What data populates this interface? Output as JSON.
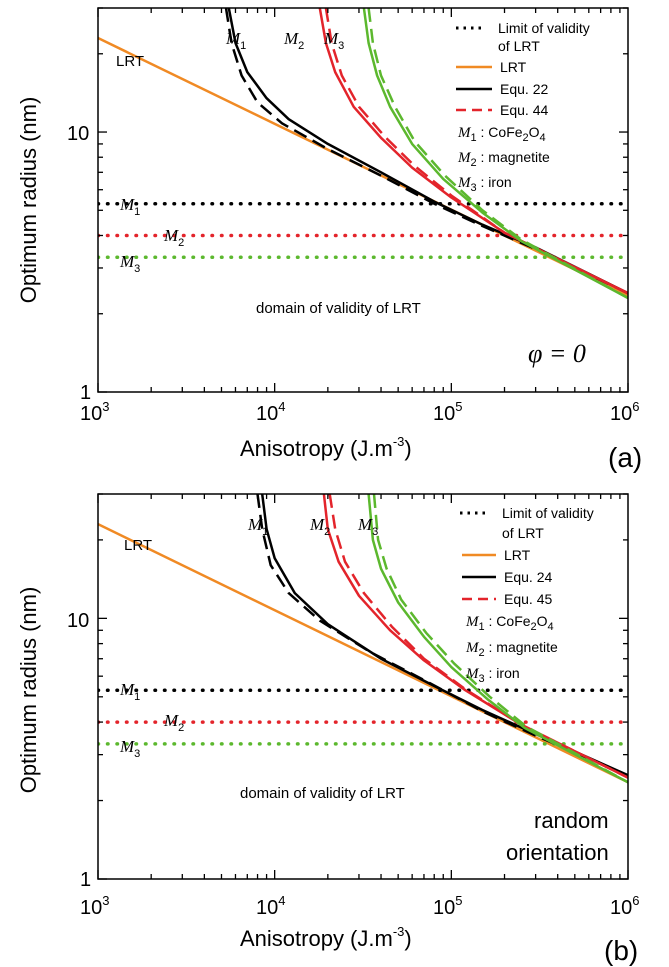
{
  "chart_data": [
    {
      "panel_id": "(a)",
      "type": "line",
      "xlabel": "Anisotropy (J.m",
      "xlabel_exp": "-3",
      "xlabel_end": ")",
      "ylabel": "Optimum radius (nm)",
      "xscale": "log",
      "yscale": "log",
      "xlim": [
        1000,
        1000000
      ],
      "ylim": [
        1,
        30
      ],
      "x_ticks": [
        {
          "base": "10",
          "exp": "3"
        },
        {
          "base": "10",
          "exp": "4"
        },
        {
          "base": "10",
          "exp": "5"
        },
        {
          "base": "10",
          "exp": "6"
        }
      ],
      "y_ticks": [
        "1",
        "10"
      ],
      "condition": "φ = 0",
      "annotation": "domain of validity of LRT",
      "lrt_label": "LRT",
      "legend": [
        {
          "label": "Limit of validity",
          "label2": "of LRT",
          "style": "dotted",
          "color": "#000000"
        },
        {
          "label": "LRT",
          "style": "solid",
          "color": "#f08a24"
        },
        {
          "label": "Equ. 22",
          "style": "solid",
          "color": "#000000"
        },
        {
          "label": "Equ. 44",
          "style": "dashed",
          "color": "#e3242b"
        }
      ],
      "materials": [
        {
          "sym": "M",
          "sub": "1",
          "name": " : CoFe",
          "name_sub1": "2",
          "name_mid": "O",
          "name_sub2": "4",
          "color": "#000000"
        },
        {
          "sym": "M",
          "sub": "2",
          "name": " : magnetite",
          "color": "#e3242b"
        },
        {
          "sym": "M",
          "sub": "3",
          "name": " : iron",
          "color": "#5cb82e"
        }
      ],
      "series": [
        {
          "name": "LRT",
          "color": "#f08a24",
          "style": "solid",
          "x": [
            1000,
            1000000
          ],
          "y": [
            23,
            2.35
          ]
        },
        {
          "name": "Limit of validity M1",
          "color": "#000000",
          "style": "dotted",
          "x": [
            1000,
            1000000
          ],
          "y": [
            5.3,
            5.3
          ]
        },
        {
          "name": "Limit of validity M2",
          "color": "#e3242b",
          "style": "dotted",
          "x": [
            1000,
            1000000
          ],
          "y": [
            4.0,
            4.0
          ]
        },
        {
          "name": "Limit of validity M3",
          "color": "#5cb82e",
          "style": "dotted",
          "x": [
            1000,
            1000000
          ],
          "y": [
            3.3,
            3.3
          ]
        },
        {
          "name": "Equ. 22 M1",
          "color": "#000000",
          "style": "solid",
          "x": [
            5500,
            6000,
            7000,
            9000,
            12000,
            20000,
            40000,
            80000,
            150000,
            300000,
            1000000
          ],
          "y": [
            30,
            22,
            17,
            13.5,
            11.2,
            9.0,
            7.0,
            5.4,
            4.4,
            3.6,
            2.4
          ]
        },
        {
          "name": "Equ. 44 M1",
          "color": "#000000",
          "style": "dashed",
          "x": [
            5300,
            5700,
            6500,
            8000,
            11000,
            20000,
            40000,
            80000,
            150000,
            300000,
            1000000
          ],
          "y": [
            30,
            22,
            16.5,
            13,
            10.8,
            8.6,
            6.8,
            5.3,
            4.35,
            3.55,
            2.4
          ]
        },
        {
          "name": "Equ. 22 M2",
          "color": "#e3242b",
          "style": "solid",
          "x": [
            18000,
            19500,
            22000,
            28000,
            40000,
            60000,
            100000,
            200000,
            1000000
          ],
          "y": [
            30,
            22,
            17,
            12.5,
            9.5,
            7.3,
            5.6,
            4.1,
            2.4
          ]
        },
        {
          "name": "Equ. 44 M2",
          "color": "#e3242b",
          "style": "dashed",
          "x": [
            19500,
            21000,
            24000,
            30000,
            42000,
            62000,
            100000,
            200000,
            1000000
          ],
          "y": [
            30,
            22,
            16.5,
            12.5,
            9.6,
            7.4,
            5.7,
            4.1,
            2.4
          ]
        },
        {
          "name": "Equ. 22 M3",
          "color": "#5cb82e",
          "style": "solid",
          "x": [
            32000,
            34000,
            38000,
            45000,
            60000,
            90000,
            150000,
            250000,
            1000000
          ],
          "y": [
            30,
            22,
            16.5,
            12.5,
            9.0,
            6.6,
            4.9,
            3.8,
            2.3
          ]
        },
        {
          "name": "Equ. 44 M3",
          "color": "#5cb82e",
          "style": "dashed",
          "x": [
            34000,
            36000,
            40000,
            48000,
            62000,
            92000,
            150000,
            250000,
            1000000
          ],
          "y": [
            30,
            22,
            16.5,
            12.5,
            9.2,
            6.8,
            5.0,
            3.85,
            2.3
          ]
        }
      ]
    },
    {
      "panel_id": "(b)",
      "type": "line",
      "xlabel": "Anisotropy (J.m",
      "xlabel_exp": "-3",
      "xlabel_end": ")",
      "ylabel": "Optimum radius (nm)",
      "xscale": "log",
      "yscale": "log",
      "xlim": [
        1000,
        1000000
      ],
      "ylim": [
        1,
        30
      ],
      "x_ticks": [
        {
          "base": "10",
          "exp": "3"
        },
        {
          "base": "10",
          "exp": "4"
        },
        {
          "base": "10",
          "exp": "5"
        },
        {
          "base": "10",
          "exp": "6"
        }
      ],
      "y_ticks": [
        "1",
        "10"
      ],
      "condition_line1": "random",
      "condition_line2": "orientation",
      "annotation": "domain of validity of LRT",
      "lrt_label": "LRT",
      "legend": [
        {
          "label": "Limit of validity",
          "label2": "of LRT",
          "style": "dotted",
          "color": "#000000"
        },
        {
          "label": "LRT",
          "style": "solid",
          "color": "#f08a24"
        },
        {
          "label": "Equ. 24",
          "style": "solid",
          "color": "#000000"
        },
        {
          "label": "Equ. 45",
          "style": "dashed",
          "color": "#e3242b"
        }
      ],
      "materials": [
        {
          "sym": "M",
          "sub": "1",
          "name": " : CoFe",
          "name_sub1": "2",
          "name_mid": "O",
          "name_sub2": "4",
          "color": "#000000"
        },
        {
          "sym": "M",
          "sub": "2",
          "name": " : magnetite",
          "color": "#e3242b"
        },
        {
          "sym": "M",
          "sub": "3",
          "name": " : iron",
          "color": "#5cb82e"
        }
      ],
      "series": [
        {
          "name": "LRT",
          "color": "#f08a24",
          "style": "solid",
          "x": [
            1000,
            1000000
          ],
          "y": [
            23,
            2.35
          ]
        },
        {
          "name": "Limit of validity M1",
          "color": "#000000",
          "style": "dotted",
          "x": [
            1000,
            1000000
          ],
          "y": [
            5.3,
            5.3
          ]
        },
        {
          "name": "Limit of validity M2",
          "color": "#e3242b",
          "style": "dotted",
          "x": [
            1000,
            1000000
          ],
          "y": [
            4.0,
            4.0
          ]
        },
        {
          "name": "Limit of validity M3",
          "color": "#5cb82e",
          "style": "dotted",
          "x": [
            1000,
            1000000
          ],
          "y": [
            3.3,
            3.3
          ]
        },
        {
          "name": "Equ. 24 M1",
          "color": "#000000",
          "style": "solid",
          "x": [
            8500,
            9000,
            10000,
            13000,
            20000,
            40000,
            80000,
            150000,
            300000,
            1000000
          ],
          "y": [
            30,
            22,
            17,
            12.5,
            9.5,
            7.0,
            5.5,
            4.45,
            3.6,
            2.5
          ]
        },
        {
          "name": "Equ. 45 M1",
          "color": "#000000",
          "style": "dashed",
          "x": [
            8000,
            8500,
            9500,
            12000,
            18000,
            35000,
            70000,
            150000,
            300000,
            1000000
          ],
          "y": [
            30,
            22,
            16,
            12.5,
            9.8,
            7.4,
            5.8,
            4.4,
            3.55,
            2.5
          ]
        },
        {
          "name": "Equ. 24 M2",
          "color": "#e3242b",
          "style": "solid",
          "x": [
            19000,
            20000,
            23000,
            30000,
            45000,
            70000,
            120000,
            250000,
            1000000
          ],
          "y": [
            30,
            22,
            16.5,
            12.2,
            9.0,
            6.9,
            5.3,
            3.9,
            2.45
          ]
        },
        {
          "name": "Equ. 45 M2",
          "color": "#e3242b",
          "style": "dashed",
          "x": [
            20500,
            22000,
            25000,
            32000,
            46000,
            70000,
            120000,
            250000,
            1000000
          ],
          "y": [
            30,
            22,
            16.5,
            12.5,
            9.3,
            7.0,
            5.35,
            3.9,
            2.45
          ]
        },
        {
          "name": "Equ. 24 M3",
          "color": "#5cb82e",
          "style": "solid",
          "x": [
            34000,
            36000,
            40000,
            50000,
            70000,
            100000,
            160000,
            260000,
            1000000
          ],
          "y": [
            30,
            20,
            15.5,
            11.5,
            8.5,
            6.5,
            4.9,
            3.8,
            2.35
          ]
        },
        {
          "name": "Equ. 45 M3",
          "color": "#5cb82e",
          "style": "dashed",
          "x": [
            36500,
            38500,
            43000,
            52000,
            72000,
            104000,
            165000,
            265000,
            1000000
          ],
          "y": [
            30,
            20,
            15.5,
            11.8,
            8.8,
            6.7,
            5.0,
            3.85,
            2.35
          ]
        }
      ]
    }
  ]
}
